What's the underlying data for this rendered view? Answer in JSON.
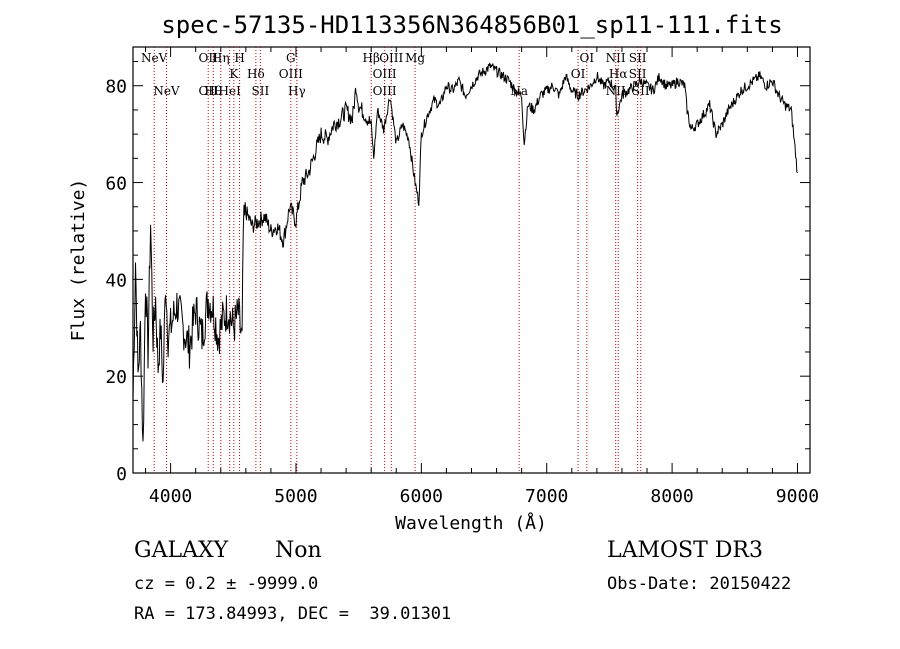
{
  "chart_data": {
    "type": "line",
    "title": "spec-57135-HD113356N364856B01_sp11-111.fits",
    "xlabel": "Wavelength (Å)",
    "ylabel": "Flux (relative)",
    "xlim": [
      3700,
      9100
    ],
    "ylim": [
      0,
      88
    ],
    "xticks": [
      4000,
      5000,
      6000,
      7000,
      8000,
      9000
    ],
    "xtick_labels": [
      "4000",
      "5000",
      "6000",
      "7000",
      "8000",
      "9000"
    ],
    "yticks": [
      0,
      20,
      40,
      60,
      80
    ],
    "ytick_labels": [
      "0",
      "20",
      "40",
      "60",
      "80"
    ],
    "grid": false,
    "legend": "none",
    "series": [
      {
        "x": [
          3700,
          3720,
          3740,
          3760,
          3780,
          3800,
          3820,
          3840,
          3860,
          3880,
          3900,
          3920,
          3940,
          3960,
          3980,
          4000,
          4050,
          4100,
          4150,
          4200,
          4250,
          4300,
          4340,
          4380,
          4420,
          4460,
          4500,
          4540,
          4570,
          4580,
          4600,
          4650,
          4700,
          4750,
          4800,
          4850,
          4900,
          4950,
          5000,
          5050,
          5100,
          5150,
          5200,
          5250,
          5300,
          5350,
          5400,
          5450,
          5480,
          5500,
          5550,
          5600,
          5620,
          5650,
          5700,
          5750,
          5800,
          5850,
          5900,
          5950,
          5980,
          6000,
          6050,
          6100,
          6150,
          6200,
          6250,
          6300,
          6350,
          6400,
          6450,
          6500,
          6550,
          6600,
          6650,
          6700,
          6750,
          6800,
          6820,
          6850,
          6900,
          6950,
          7000,
          7050,
          7100,
          7150,
          7200,
          7250,
          7300,
          7350,
          7400,
          7450,
          7500,
          7550,
          7560,
          7600,
          7650,
          7700,
          7750,
          7800,
          7850,
          7900,
          7950,
          8000,
          8050,
          8100,
          8120,
          8150,
          8200,
          8250,
          8300,
          8350,
          8400,
          8450,
          8500,
          8550,
          8600,
          8650,
          8700,
          8750,
          8800,
          8850,
          8900,
          8950,
          9000
        ],
        "values": [
          15,
          44,
          20,
          30,
          5,
          40,
          25,
          52,
          28,
          36,
          22,
          30,
          18,
          40,
          28,
          30,
          35,
          30,
          26,
          34,
          28,
          36,
          34,
          28,
          32,
          34,
          30,
          33,
          27,
          50,
          54,
          51,
          52,
          53,
          50,
          51,
          48,
          55,
          52,
          60,
          62,
          66,
          70,
          69,
          72,
          73,
          75,
          73,
          80,
          76,
          74,
          72,
          65,
          75,
          71,
          78,
          68,
          72,
          69,
          60,
          56,
          70,
          74,
          77,
          76,
          80,
          79,
          81,
          78,
          80,
          82,
          83,
          84,
          83,
          82,
          81,
          79,
          78,
          68,
          76,
          75,
          78,
          79,
          80,
          78,
          82,
          79,
          78,
          79,
          80,
          82,
          80,
          81,
          79,
          74,
          78,
          79,
          80,
          81,
          80,
          79,
          82,
          80,
          80,
          81,
          80,
          75,
          71,
          72,
          74,
          76,
          70,
          72,
          75,
          77,
          79,
          80,
          81,
          82,
          80,
          81,
          78,
          76,
          75,
          62
        ]
      }
    ],
    "lines": [
      {
        "x": 3869,
        "top": "NeV"
      },
      {
        "x": 3967,
        "bottom": "NeV"
      },
      {
        "x": 4300,
        "top": "OII",
        "bottom": "OII"
      },
      {
        "x": 4340,
        "bottom": "Hθ"
      },
      {
        "x": 4400,
        "top": "Hη"
      },
      {
        "x": 4471,
        "bottom": "HeI"
      },
      {
        "x": 4504,
        "mid": "K"
      },
      {
        "x": 4550,
        "top": "H"
      },
      {
        "x": 4680,
        "mid": "Hδ"
      },
      {
        "x": 4716,
        "bottom": "SII"
      },
      {
        "x": 4959,
        "top": "G",
        "mid": "OIII"
      },
      {
        "x": 5007,
        "bottom": "Hγ"
      },
      {
        "x": 5600,
        "top": "Hβ"
      },
      {
        "x": 5707,
        "mid": "OIII",
        "bottom": "OIII"
      },
      {
        "x": 5760,
        "top": "OIII"
      },
      {
        "x": 5950,
        "top": "Mg"
      },
      {
        "x": 6780,
        "bottom": "Na"
      },
      {
        "x": 7250,
        "mid": "OI"
      },
      {
        "x": 7320,
        "top": "OI"
      },
      {
        "x": 7550,
        "top": "NII",
        "bottom": "NII"
      },
      {
        "x": 7570,
        "mid": "Hα"
      },
      {
        "x": 7725,
        "top": "SII",
        "mid": "SII"
      },
      {
        "x": 7750,
        "bottom": "SII"
      }
    ]
  },
  "info": {
    "class_text": "GALAXY",
    "subclass_text": "Non",
    "survey_text": "LAMOST DR3",
    "cz_text": "cz = 0.2 ± -9999.0",
    "obsdate_text": "Obs-Date: 20150422",
    "radec_text": "RA = 173.84993, DEC =  39.01301"
  },
  "colors": {
    "spectrum": "#000000",
    "lines": "#cc0000"
  }
}
